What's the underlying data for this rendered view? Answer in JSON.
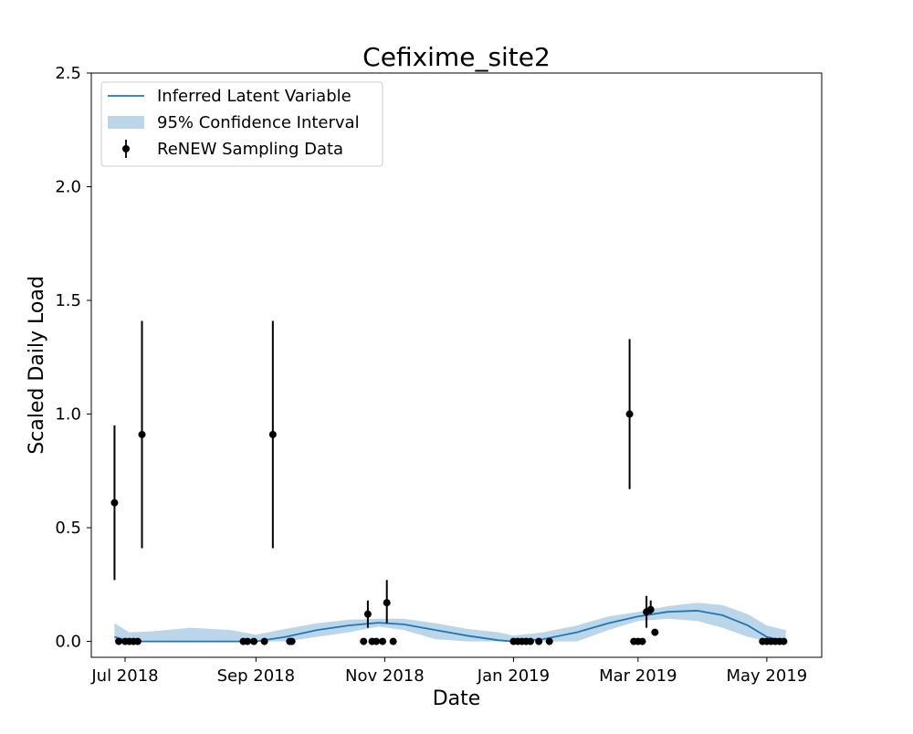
{
  "chart_data": {
    "type": "line",
    "title": "Cefixime_site2",
    "xlabel": "Date",
    "ylabel": "Scaled Daily Load",
    "xlim": [
      "2018-06-15",
      "2019-05-27"
    ],
    "ylim": [
      -0.07,
      2.5
    ],
    "grid": false,
    "legend_position": "top-left",
    "x_ticks": [
      {
        "date": "2018-07-01",
        "label": "Jul 2018"
      },
      {
        "date": "2018-09-01",
        "label": "Sep 2018"
      },
      {
        "date": "2018-11-01",
        "label": "Nov 2018"
      },
      {
        "date": "2019-01-01",
        "label": "Jan 2019"
      },
      {
        "date": "2019-03-01",
        "label": "Mar 2019"
      },
      {
        "date": "2019-05-01",
        "label": "May 2019"
      }
    ],
    "y_ticks": [
      {
        "value": 0.0,
        "label": "0.0"
      },
      {
        "value": 0.5,
        "label": "0.5"
      },
      {
        "value": 1.0,
        "label": "1.0"
      },
      {
        "value": 1.5,
        "label": "1.5"
      },
      {
        "value": 2.0,
        "label": "2.0"
      },
      {
        "value": 2.5,
        "label": "2.5"
      }
    ],
    "legend": [
      {
        "label": "Inferred Latent Variable",
        "kind": "line"
      },
      {
        "label": "95% Confidence Interval",
        "kind": "band"
      },
      {
        "label": "ReNEW Sampling Data",
        "kind": "errorbar"
      }
    ],
    "colors": {
      "line": "#1f77b4",
      "band": "#1f77b4",
      "band_alpha": 0.3,
      "points": "#000000"
    },
    "series": [
      {
        "name": "Inferred Latent Variable",
        "kind": "line",
        "points": [
          {
            "x": "2018-06-26",
            "y": 0.02
          },
          {
            "x": "2018-07-03",
            "y": 0.0
          },
          {
            "x": "2018-08-01",
            "y": 0.0
          },
          {
            "x": "2018-08-25",
            "y": 0.0
          },
          {
            "x": "2018-09-01",
            "y": 0.0
          },
          {
            "x": "2018-09-15",
            "y": 0.02
          },
          {
            "x": "2018-09-30",
            "y": 0.05
          },
          {
            "x": "2018-10-15",
            "y": 0.07
          },
          {
            "x": "2018-10-29",
            "y": 0.082
          },
          {
            "x": "2018-11-10",
            "y": 0.075
          },
          {
            "x": "2018-11-25",
            "y": 0.05
          },
          {
            "x": "2018-12-10",
            "y": 0.025
          },
          {
            "x": "2018-12-25",
            "y": 0.005
          },
          {
            "x": "2019-01-01",
            "y": 0.0
          },
          {
            "x": "2019-01-15",
            "y": 0.01
          },
          {
            "x": "2019-01-31",
            "y": 0.04
          },
          {
            "x": "2019-02-15",
            "y": 0.08
          },
          {
            "x": "2019-03-01",
            "y": 0.11
          },
          {
            "x": "2019-03-15",
            "y": 0.13
          },
          {
            "x": "2019-03-29",
            "y": 0.135
          },
          {
            "x": "2019-04-10",
            "y": 0.115
          },
          {
            "x": "2019-04-22",
            "y": 0.07
          },
          {
            "x": "2019-05-01",
            "y": 0.02
          },
          {
            "x": "2019-05-10",
            "y": 0.0
          }
        ]
      },
      {
        "name": "95% Confidence Interval",
        "kind": "band",
        "points": [
          {
            "x": "2018-06-26",
            "lower": 0.0,
            "upper": 0.08
          },
          {
            "x": "2018-07-03",
            "lower": 0.0,
            "upper": 0.04
          },
          {
            "x": "2018-07-15",
            "lower": 0.0,
            "upper": 0.045
          },
          {
            "x": "2018-08-01",
            "lower": 0.0,
            "upper": 0.06
          },
          {
            "x": "2018-08-20",
            "lower": 0.0,
            "upper": 0.05
          },
          {
            "x": "2018-09-01",
            "lower": 0.0,
            "upper": 0.03
          },
          {
            "x": "2018-09-15",
            "lower": 0.0,
            "upper": 0.055
          },
          {
            "x": "2018-09-30",
            "lower": 0.02,
            "upper": 0.08
          },
          {
            "x": "2018-10-15",
            "lower": 0.04,
            "upper": 0.095
          },
          {
            "x": "2018-10-29",
            "lower": 0.065,
            "upper": 0.1
          },
          {
            "x": "2018-11-10",
            "lower": 0.05,
            "upper": 0.1
          },
          {
            "x": "2018-11-25",
            "lower": 0.01,
            "upper": 0.08
          },
          {
            "x": "2018-12-10",
            "lower": 0.0,
            "upper": 0.055
          },
          {
            "x": "2018-12-25",
            "lower": 0.0,
            "upper": 0.04
          },
          {
            "x": "2019-01-01",
            "lower": 0.0,
            "upper": 0.025
          },
          {
            "x": "2019-01-15",
            "lower": 0.0,
            "upper": 0.04
          },
          {
            "x": "2019-01-31",
            "lower": 0.0,
            "upper": 0.07
          },
          {
            "x": "2019-02-15",
            "lower": 0.05,
            "upper": 0.11
          },
          {
            "x": "2019-03-01",
            "lower": 0.09,
            "upper": 0.13
          },
          {
            "x": "2019-03-15",
            "lower": 0.1,
            "upper": 0.155
          },
          {
            "x": "2019-03-29",
            "lower": 0.09,
            "upper": 0.17
          },
          {
            "x": "2019-04-10",
            "lower": 0.06,
            "upper": 0.16
          },
          {
            "x": "2019-04-22",
            "lower": 0.02,
            "upper": 0.12
          },
          {
            "x": "2019-05-01",
            "lower": 0.0,
            "upper": 0.07
          },
          {
            "x": "2019-05-10",
            "lower": 0.0,
            "upper": 0.05
          }
        ]
      },
      {
        "name": "ReNEW Sampling Data",
        "kind": "errorbar",
        "points": [
          {
            "x": "2018-06-26",
            "y": 0.61,
            "lower": 0.27,
            "upper": 0.95
          },
          {
            "x": "2018-06-28",
            "y": 0.0
          },
          {
            "x": "2018-07-01",
            "y": 0.0
          },
          {
            "x": "2018-07-03",
            "y": 0.0
          },
          {
            "x": "2018-07-05",
            "y": 0.0
          },
          {
            "x": "2018-07-07",
            "y": 0.0
          },
          {
            "x": "2018-07-09",
            "y": 0.91,
            "lower": 0.41,
            "upper": 1.41
          },
          {
            "x": "2018-08-26",
            "y": 0.0
          },
          {
            "x": "2018-08-28",
            "y": 0.0
          },
          {
            "x": "2018-08-31",
            "y": 0.0
          },
          {
            "x": "2018-09-05",
            "y": 0.0
          },
          {
            "x": "2018-09-09",
            "y": 0.91,
            "lower": 0.41,
            "upper": 1.41
          },
          {
            "x": "2018-09-17",
            "y": 0.0
          },
          {
            "x": "2018-09-18",
            "y": 0.0
          },
          {
            "x": "2018-10-22",
            "y": 0.0
          },
          {
            "x": "2018-10-24",
            "y": 0.12,
            "lower": 0.06,
            "upper": 0.18
          },
          {
            "x": "2018-10-26",
            "y": 0.0
          },
          {
            "x": "2018-10-28",
            "y": 0.0
          },
          {
            "x": "2018-10-31",
            "y": 0.0
          },
          {
            "x": "2018-11-02",
            "y": 0.17,
            "lower": 0.08,
            "upper": 0.27
          },
          {
            "x": "2018-11-05",
            "y": 0.0
          },
          {
            "x": "2019-01-01",
            "y": 0.0
          },
          {
            "x": "2019-01-03",
            "y": 0.0
          },
          {
            "x": "2019-01-05",
            "y": 0.0
          },
          {
            "x": "2019-01-07",
            "y": 0.0
          },
          {
            "x": "2019-01-09",
            "y": 0.0
          },
          {
            "x": "2019-01-13",
            "y": 0.0
          },
          {
            "x": "2019-01-18",
            "y": 0.0
          },
          {
            "x": "2019-02-25",
            "y": 1.0,
            "lower": 0.67,
            "upper": 1.33
          },
          {
            "x": "2019-02-27",
            "y": 0.0
          },
          {
            "x": "2019-03-01",
            "y": 0.0
          },
          {
            "x": "2019-03-03",
            "y": 0.0
          },
          {
            "x": "2019-03-05",
            "y": 0.13,
            "lower": 0.06,
            "upper": 0.2
          },
          {
            "x": "2019-03-07",
            "y": 0.14,
            "lower": 0.12,
            "upper": 0.18
          },
          {
            "x": "2019-03-09",
            "y": 0.04,
            "lower": 0.03,
            "upper": 0.05
          },
          {
            "x": "2019-04-29",
            "y": 0.0
          },
          {
            "x": "2019-05-01",
            "y": 0.0
          },
          {
            "x": "2019-05-03",
            "y": 0.0
          },
          {
            "x": "2019-05-05",
            "y": 0.0
          },
          {
            "x": "2019-05-07",
            "y": 0.0
          },
          {
            "x": "2019-05-09",
            "y": 0.0
          }
        ]
      }
    ]
  }
}
